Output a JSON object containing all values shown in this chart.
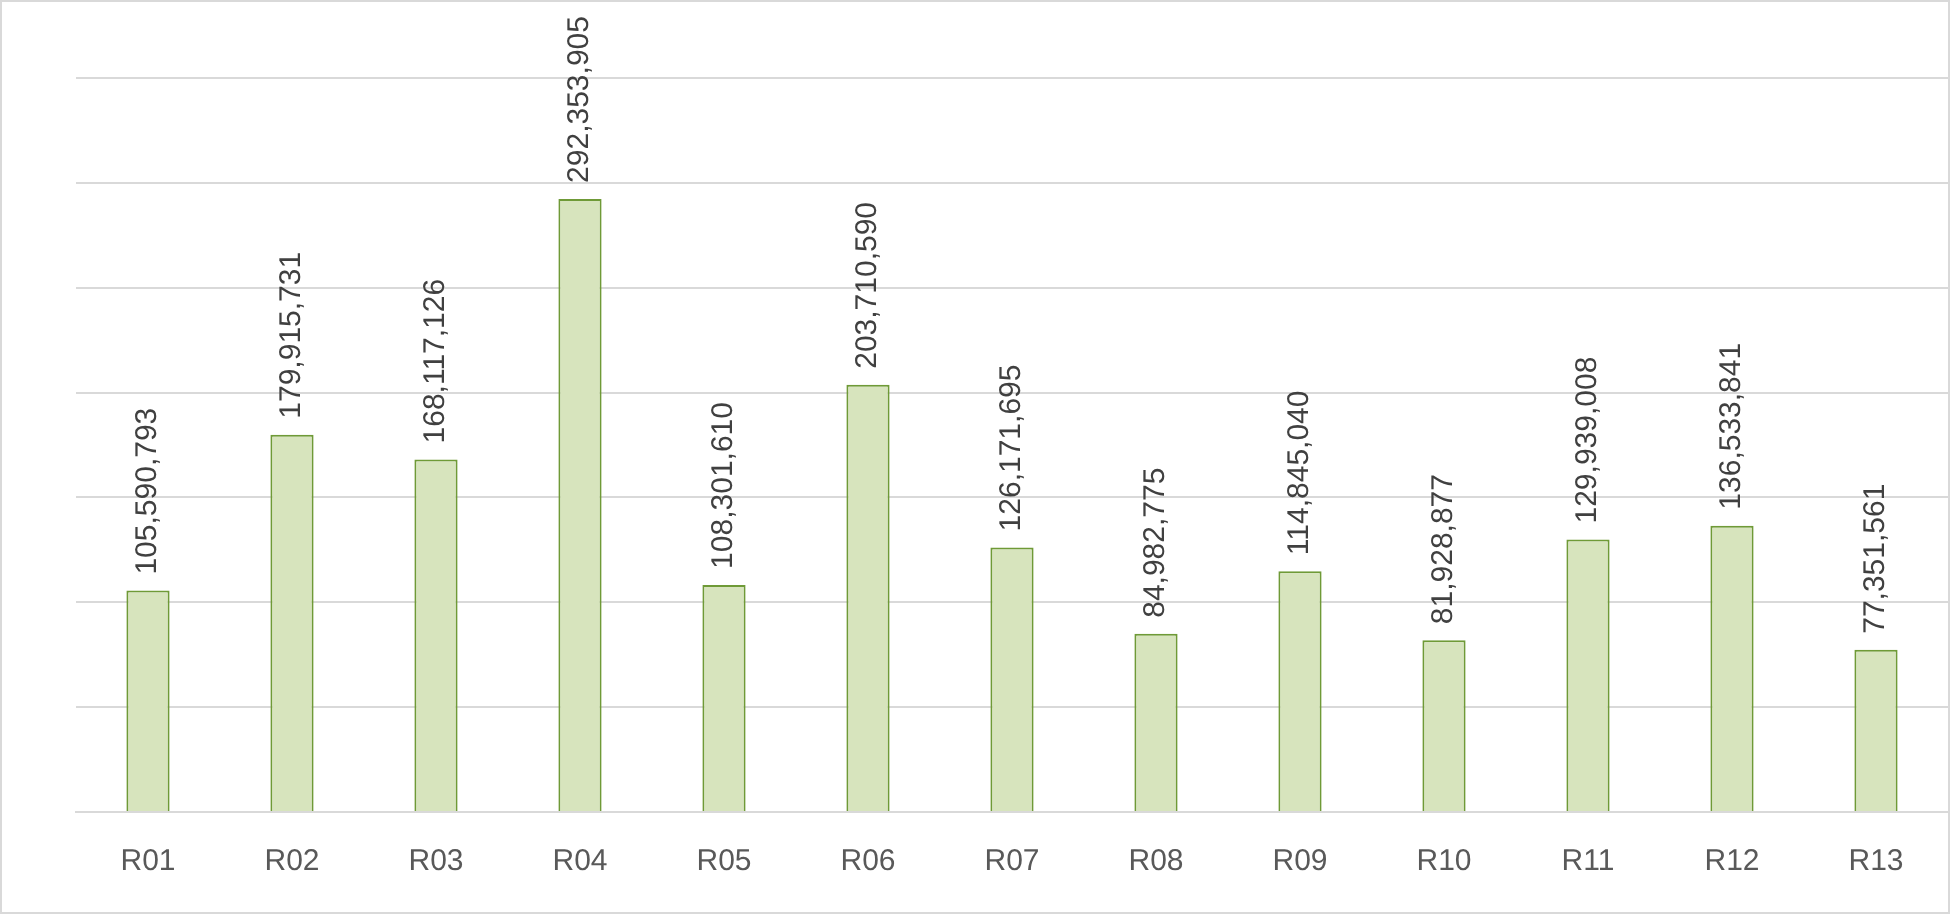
{
  "chart_data": {
    "type": "bar",
    "categories": [
      "R01",
      "R02",
      "R03",
      "R04",
      "R05",
      "R06",
      "R07",
      "R08",
      "R09",
      "R10",
      "R11",
      "R12",
      "R13"
    ],
    "values": [
      105590793,
      179915731,
      168117126,
      292353905,
      108301610,
      203710590,
      126171695,
      84982775,
      114845040,
      81928877,
      129939008,
      136533841,
      77351561
    ],
    "value_labels": [
      "105,590,793",
      "179,915,731",
      "168,117,126",
      "292,353,905",
      "108,301,610",
      "203,710,590",
      "126,171,695",
      "84,982,775",
      "114,845,040",
      "81,928,877",
      "129,939,008",
      "136,533,841",
      "77,351,561"
    ],
    "color": "#d7e4bd",
    "grid": "y",
    "tick_labels": "x",
    "legend": false
  }
}
